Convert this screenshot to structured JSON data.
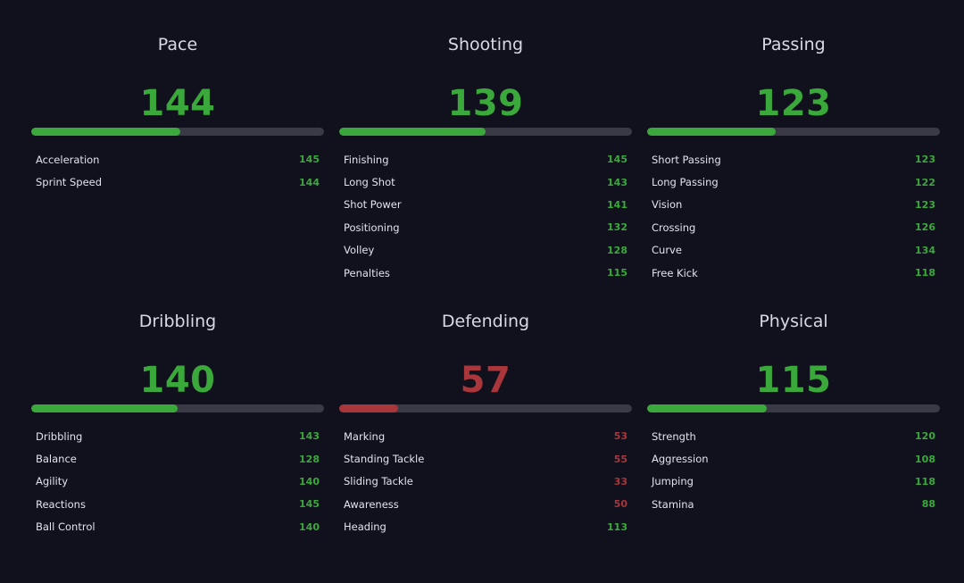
{
  "categories": [
    {
      "title": "Pace",
      "value": "144",
      "fill_percent": 51,
      "status": "good",
      "stats": [
        {
          "label": "Acceleration",
          "value": "145",
          "status": "good"
        },
        {
          "label": "Sprint Speed",
          "value": "144",
          "status": "good"
        }
      ]
    },
    {
      "title": "Shooting",
      "value": "139",
      "fill_percent": 50,
      "status": "good",
      "stats": [
        {
          "label": "Finishing",
          "value": "145",
          "status": "good"
        },
        {
          "label": "Long Shot",
          "value": "143",
          "status": "good"
        },
        {
          "label": "Shot Power",
          "value": "141",
          "status": "good"
        },
        {
          "label": "Positioning",
          "value": "132",
          "status": "good"
        },
        {
          "label": "Volley",
          "value": "128",
          "status": "good"
        },
        {
          "label": "Penalties",
          "value": "115",
          "status": "good"
        }
      ]
    },
    {
      "title": "Passing",
      "value": "123",
      "fill_percent": 44,
      "status": "good",
      "stats": [
        {
          "label": "Short Passing",
          "value": "123",
          "status": "good"
        },
        {
          "label": "Long Passing",
          "value": "122",
          "status": "good"
        },
        {
          "label": "Vision",
          "value": "123",
          "status": "good"
        },
        {
          "label": "Crossing",
          "value": "126",
          "status": "good"
        },
        {
          "label": "Curve",
          "value": "134",
          "status": "good"
        },
        {
          "label": "Free Kick",
          "value": "118",
          "status": "good"
        }
      ]
    },
    {
      "title": "Dribbling",
      "value": "140",
      "fill_percent": 50,
      "status": "good",
      "stats": [
        {
          "label": "Dribbling",
          "value": "143",
          "status": "good"
        },
        {
          "label": "Balance",
          "value": "128",
          "status": "good"
        },
        {
          "label": "Agility",
          "value": "140",
          "status": "good"
        },
        {
          "label": "Reactions",
          "value": "145",
          "status": "good"
        },
        {
          "label": "Ball Control",
          "value": "140",
          "status": "good"
        }
      ]
    },
    {
      "title": "Defending",
      "value": "57",
      "fill_percent": 20,
      "status": "bad",
      "stats": [
        {
          "label": "Marking",
          "value": "53",
          "status": "bad"
        },
        {
          "label": "Standing Tackle",
          "value": "55",
          "status": "bad"
        },
        {
          "label": "Sliding Tackle",
          "value": "33",
          "status": "bad"
        },
        {
          "label": "Awareness",
          "value": "50",
          "status": "bad"
        },
        {
          "label": "Heading",
          "value": "113",
          "status": "good"
        }
      ]
    },
    {
      "title": "Physical",
      "value": "115",
      "fill_percent": 41,
      "status": "good",
      "stats": [
        {
          "label": "Strength",
          "value": "120",
          "status": "good"
        },
        {
          "label": "Aggression",
          "value": "108",
          "status": "good"
        },
        {
          "label": "Jumping",
          "value": "118",
          "status": "good"
        },
        {
          "label": "Stamina",
          "value": "88",
          "status": "good"
        }
      ]
    }
  ],
  "colors": {
    "background": "#11111e",
    "good": "#3aa83a",
    "bad": "#a8363a",
    "track": "#3a3a46"
  }
}
